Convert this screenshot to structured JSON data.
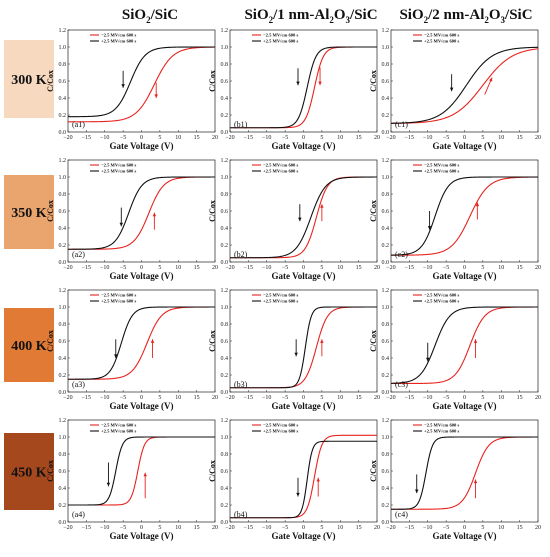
{
  "columns": [
    {
      "title_main": "SiO",
      "title_sub": "2",
      "title_rest": "/SiC"
    },
    {
      "title_main": "SiO",
      "title_sub": "2",
      "title_rest": "/1 nm-Al",
      "title_sub2": "2",
      "title_mid": "O",
      "title_sub3": "3",
      "title_end": "/SiC"
    },
    {
      "title_main": "SiO",
      "title_sub": "2",
      "title_rest": "/2 nm-Al",
      "title_sub2": "2",
      "title_mid": "O",
      "title_sub3": "3",
      "title_end": "/SiC"
    }
  ],
  "rows": [
    {
      "label": "300 K",
      "color": "#f7d9bf",
      "text_color": "#111111"
    },
    {
      "label": "350 K",
      "color": "#eaa56f",
      "text_color": "#111111"
    },
    {
      "label": "400 K",
      "color": "#e07a35",
      "text_color": "#111111"
    },
    {
      "label": "450 K",
      "color": "#a5481e",
      "text_color": "#111111"
    }
  ],
  "colors": {
    "negative": "#e8231f",
    "positive": "#111111"
  },
  "chart_data": {
    "type": "line",
    "xlabel": "Gate Voltage (V)",
    "ylabel": "C/Cox",
    "xlim": [
      -20,
      20
    ],
    "ylim": [
      0.0,
      1.2
    ],
    "xticks": [
      -20,
      -15,
      -10,
      -5,
      0,
      5,
      10,
      15,
      20
    ],
    "yticks": [
      0.0,
      0.2,
      0.4,
      0.6,
      0.8,
      1.0,
      1.2
    ],
    "legend": [
      "−2.5 MV/cm 600 s",
      "+2.5 MV/cm 600 s"
    ],
    "legend_position": "top-left",
    "panels": [
      {
        "label": "(a1)",
        "neg": {
          "v0": 3.5,
          "w": 2.5,
          "ymin": 0.12,
          "ymax": 1.0
        },
        "pos": {
          "v0": -3.0,
          "w": 2.0,
          "ymin": 0.18,
          "ymax": 1.0
        },
        "arrow_neg": [
          4,
          0.58,
          4,
          0.4
        ],
        "arrow_pos": [
          -5,
          0.72,
          -5,
          0.52
        ]
      },
      {
        "label": "(b1)",
        "neg": {
          "v0": 3.0,
          "w": 1.2,
          "ymin": 0.05,
          "ymax": 1.0
        },
        "pos": {
          "v0": 1.0,
          "w": 1.2,
          "ymin": 0.05,
          "ymax": 1.0
        },
        "arrow_neg": [
          4.5,
          0.76,
          4.5,
          0.55
        ],
        "arrow_pos": [
          -1.5,
          0.75,
          -1.5,
          0.55
        ]
      },
      {
        "label": "(c1)",
        "neg": {
          "v0": 5.0,
          "w": 4.0,
          "ymin": 0.1,
          "ymax": 1.0
        },
        "pos": {
          "v0": 0.5,
          "w": 3.5,
          "ymin": 0.1,
          "ymax": 1.0
        },
        "arrow_neg": [
          5.5,
          0.44,
          7.5,
          0.64
        ],
        "arrow_pos": [
          -3.5,
          0.68,
          -3.5,
          0.48
        ]
      },
      {
        "label": "(a2)",
        "neg": {
          "v0": 2.0,
          "w": 2.0,
          "ymin": 0.15,
          "ymax": 1.0
        },
        "pos": {
          "v0": -3.5,
          "w": 1.8,
          "ymin": 0.15,
          "ymax": 1.0
        },
        "arrow_neg": [
          3.5,
          0.38,
          3.5,
          0.58
        ],
        "arrow_pos": [
          -5.5,
          0.64,
          -5.5,
          0.42
        ]
      },
      {
        "label": "(b2)",
        "neg": {
          "v0": 3.5,
          "w": 1.5,
          "ymin": 0.05,
          "ymax": 1.0
        },
        "pos": {
          "v0": 2.0,
          "w": 2.0,
          "ymin": 0.05,
          "ymax": 1.0
        },
        "arrow_neg": [
          5.0,
          0.48,
          5.0,
          0.68
        ],
        "arrow_pos": [
          -1.0,
          0.68,
          -1.0,
          0.48
        ]
      },
      {
        "label": "(c2)",
        "neg": {
          "v0": 1.5,
          "w": 2.5,
          "ymin": 0.08,
          "ymax": 1.0
        },
        "pos": {
          "v0": -8.0,
          "w": 1.8,
          "ymin": 0.08,
          "ymax": 1.0
        },
        "arrow_neg": [
          3.5,
          0.5,
          3.5,
          0.7
        ],
        "arrow_pos": [
          -9.5,
          0.6,
          -9.5,
          0.38
        ]
      },
      {
        "label": "(a3)",
        "neg": {
          "v0": 1.5,
          "w": 2.0,
          "ymin": 0.15,
          "ymax": 1.0
        },
        "pos": {
          "v0": -5.5,
          "w": 1.5,
          "ymin": 0.15,
          "ymax": 1.0
        },
        "arrow_neg": [
          3.0,
          0.4,
          3.0,
          0.62
        ],
        "arrow_pos": [
          -7.0,
          0.62,
          -7.0,
          0.4
        ]
      },
      {
        "label": "(b3)",
        "neg": {
          "v0": 3.5,
          "w": 1.5,
          "ymin": 0.05,
          "ymax": 1.0
        },
        "pos": {
          "v0": 0.5,
          "w": 0.8,
          "ymin": 0.05,
          "ymax": 1.0
        },
        "arrow_neg": [
          5.0,
          0.42,
          5.0,
          0.62
        ],
        "arrow_pos": [
          -2.0,
          0.62,
          -2.0,
          0.42
        ]
      },
      {
        "label": "(c3)",
        "neg": {
          "v0": 1.5,
          "w": 2.0,
          "ymin": 0.1,
          "ymax": 1.0
        },
        "pos": {
          "v0": -8.0,
          "w": 2.0,
          "ymin": 0.1,
          "ymax": 1.0
        },
        "arrow_neg": [
          3.0,
          0.4,
          3.0,
          0.62
        ],
        "arrow_pos": [
          -10.0,
          0.58,
          -10.0,
          0.36
        ]
      },
      {
        "label": "(a4)",
        "neg": {
          "v0": -1.0,
          "w": 0.9,
          "ymin": 0.2,
          "ymax": 1.0
        },
        "pos": {
          "v0": -7.0,
          "w": 0.9,
          "ymin": 0.2,
          "ymax": 1.0
        },
        "arrow_neg": [
          1.0,
          0.28,
          1.0,
          0.58
        ],
        "arrow_pos": [
          -9.0,
          0.7,
          -9.0,
          0.42
        ]
      },
      {
        "label": "(b4)",
        "neg": {
          "v0": 3.0,
          "w": 1.0,
          "ymin": 0.05,
          "ymax": 1.02
        },
        "pos": {
          "v0": 1.0,
          "w": 0.7,
          "ymin": 0.05,
          "ymax": 0.95
        },
        "arrow_neg": [
          4.0,
          0.3,
          4.0,
          0.52
        ],
        "arrow_pos": [
          -1.5,
          0.52,
          -1.5,
          0.3
        ]
      },
      {
        "label": "(c4)",
        "neg": {
          "v0": 3.0,
          "w": 1.8,
          "ymin": 0.15,
          "ymax": 1.0
        },
        "pos": {
          "v0": -10.5,
          "w": 0.9,
          "ymin": 0.15,
          "ymax": 1.0
        },
        "arrow_neg": [
          3.0,
          0.28,
          3.0,
          0.5
        ],
        "arrow_pos": [
          -13.0,
          0.56,
          -13.0,
          0.34
        ]
      }
    ]
  }
}
